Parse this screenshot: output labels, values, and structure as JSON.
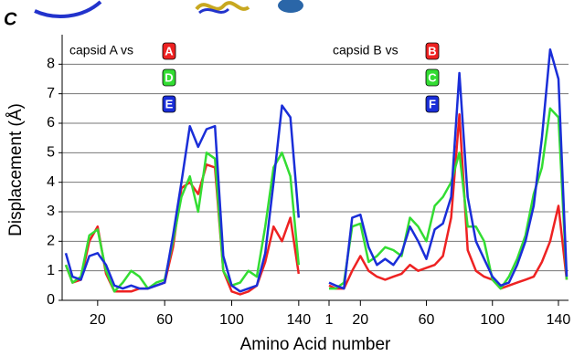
{
  "chart_data": {
    "type": "line",
    "panel_label": "C",
    "ylabel": "Displacement (Å)",
    "xlabel": "Amino Acid number",
    "ylim": [
      0,
      9
    ],
    "yticks": [
      0,
      1,
      2,
      3,
      4,
      5,
      6,
      7,
      8
    ],
    "grid": true,
    "panels": [
      {
        "legend_title": "capsid A vs",
        "xlim": [
          1,
          145
        ],
        "xticks": [
          20,
          60,
          100,
          140
        ],
        "x": [
          1,
          5,
          10,
          15,
          20,
          25,
          30,
          35,
          40,
          45,
          50,
          55,
          60,
          65,
          70,
          75,
          80,
          85,
          90,
          95,
          100,
          105,
          110,
          115,
          120,
          125,
          130,
          135,
          140
        ],
        "series": [
          {
            "name": "A",
            "color": "#ee2222",
            "values": [
              1.2,
              0.6,
              0.7,
              2.0,
              2.5,
              0.9,
              0.3,
              0.3,
              0.3,
              0.4,
              0.4,
              0.5,
              0.6,
              1.8,
              3.8,
              4.0,
              3.6,
              4.6,
              4.5,
              1.0,
              0.3,
              0.2,
              0.3,
              0.5,
              1.3,
              2.5,
              2.0,
              2.8,
              0.9
            ]
          },
          {
            "name": "D",
            "color": "#33dd33",
            "values": [
              1.2,
              0.6,
              0.8,
              2.2,
              2.4,
              1.0,
              0.3,
              0.6,
              1.0,
              0.8,
              0.4,
              0.6,
              0.7,
              2.0,
              3.5,
              4.2,
              3.0,
              5.0,
              4.8,
              1.0,
              0.5,
              0.6,
              1.0,
              0.8,
              2.5,
              4.5,
              5.0,
              4.2,
              1.2
            ]
          },
          {
            "name": "E",
            "color": "#1a2ed8",
            "values": [
              1.6,
              0.8,
              0.7,
              1.5,
              1.6,
              1.2,
              0.5,
              0.4,
              0.5,
              0.4,
              0.4,
              0.5,
              0.6,
              2.2,
              4.0,
              5.9,
              5.2,
              5.8,
              5.9,
              1.5,
              0.5,
              0.3,
              0.4,
              0.5,
              1.6,
              4.0,
              6.6,
              6.2,
              2.8
            ]
          }
        ]
      },
      {
        "legend_title": "capsid B vs",
        "xlim": [
          1,
          145
        ],
        "xticks": [
          1,
          20,
          60,
          100,
          140
        ],
        "x": [
          1,
          5,
          10,
          15,
          20,
          25,
          30,
          35,
          40,
          45,
          50,
          55,
          60,
          65,
          70,
          75,
          80,
          85,
          90,
          95,
          100,
          105,
          110,
          115,
          120,
          125,
          130,
          135,
          140,
          145
        ],
        "series": [
          {
            "name": "B",
            "color": "#ee2222",
            "values": [
              0.5,
              0.4,
              0.4,
              1.0,
              1.5,
              1.0,
              0.8,
              0.7,
              0.8,
              0.9,
              1.2,
              1.0,
              1.1,
              1.2,
              1.5,
              2.8,
              6.3,
              1.7,
              1.0,
              0.8,
              0.7,
              0.4,
              0.5,
              0.6,
              0.7,
              0.8,
              1.3,
              2.0,
              3.2,
              0.7
            ]
          },
          {
            "name": "C",
            "color": "#33dd33",
            "values": [
              0.4,
              0.4,
              0.6,
              2.5,
              2.6,
              1.3,
              1.5,
              1.8,
              1.7,
              1.5,
              2.8,
              2.5,
              2.0,
              3.2,
              3.5,
              4.0,
              5.0,
              2.5,
              2.5,
              2.0,
              0.7,
              0.4,
              0.8,
              1.4,
              2.2,
              3.6,
              4.5,
              6.5,
              6.2,
              0.7
            ]
          },
          {
            "name": "F",
            "color": "#1a2ed8",
            "values": [
              0.6,
              0.5,
              0.4,
              2.8,
              2.9,
              1.8,
              1.2,
              1.4,
              1.2,
              1.6,
              2.5,
              2.0,
              1.4,
              2.4,
              2.6,
              3.5,
              7.7,
              3.5,
              2.0,
              1.4,
              0.8,
              0.5,
              0.6,
              1.2,
              2.0,
              3.2,
              5.5,
              8.5,
              7.5,
              0.8
            ]
          }
        ]
      }
    ]
  }
}
